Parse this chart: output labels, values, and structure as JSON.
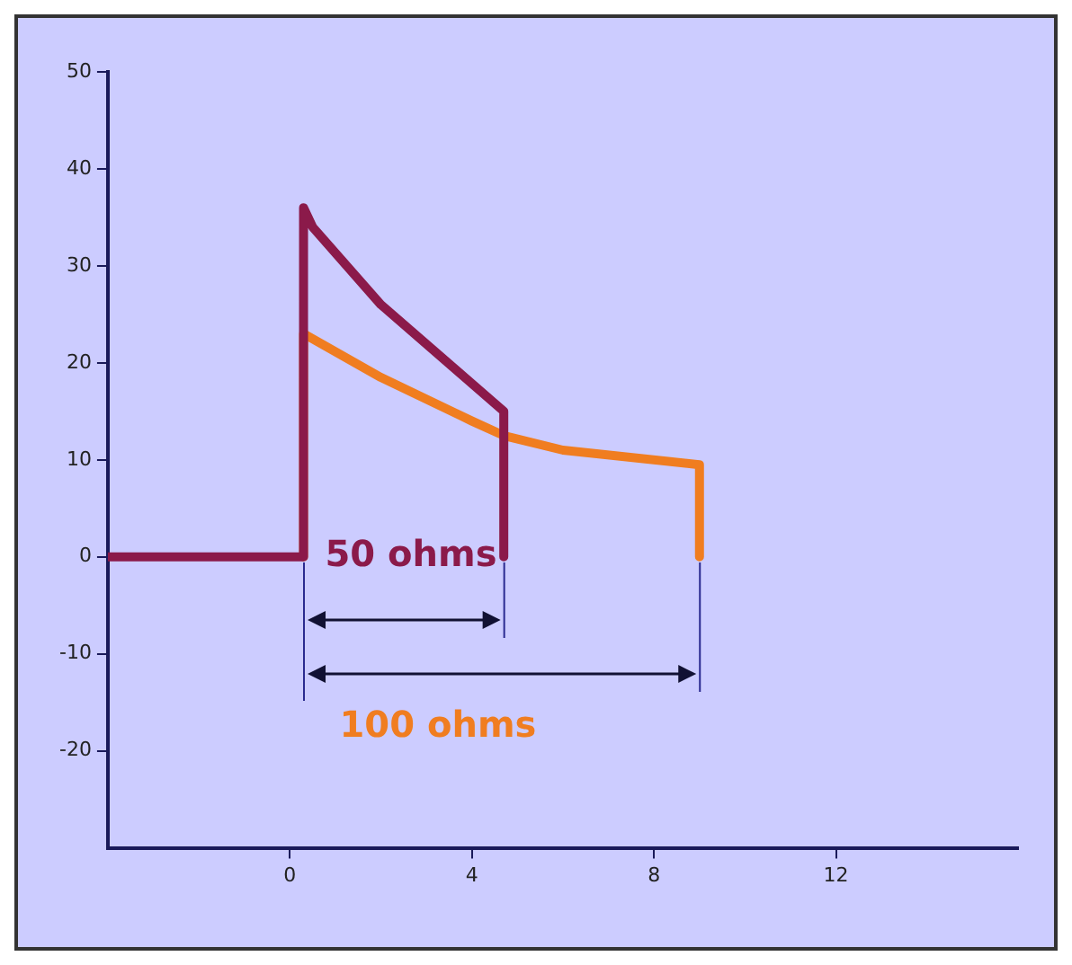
{
  "chart_data": {
    "type": "line",
    "xlim": [
      -4,
      16
    ],
    "xticks": [
      0,
      4,
      8,
      12
    ],
    "ylim": [
      -30,
      50
    ],
    "yticks": [
      -20,
      -10,
      0,
      10,
      20,
      30,
      40,
      50
    ],
    "grid": false,
    "legend": false,
    "marker": "none",
    "line_style": "solid",
    "series": [
      {
        "name": "50 ohms",
        "color": "#8b1a4a",
        "x": [
          -4,
          0.3,
          0.3,
          0.5,
          2,
          4.7,
          4.7
        ],
        "values": [
          0,
          0,
          36,
          34,
          26,
          15,
          0
        ]
      },
      {
        "name": "100 ohms",
        "color": "#f07d20",
        "x": [
          0.3,
          0.3,
          2,
          4,
          4.7,
          6,
          9,
          9
        ],
        "values": [
          0,
          23,
          18.5,
          14,
          12.5,
          11,
          9.5,
          0
        ]
      }
    ]
  }
}
